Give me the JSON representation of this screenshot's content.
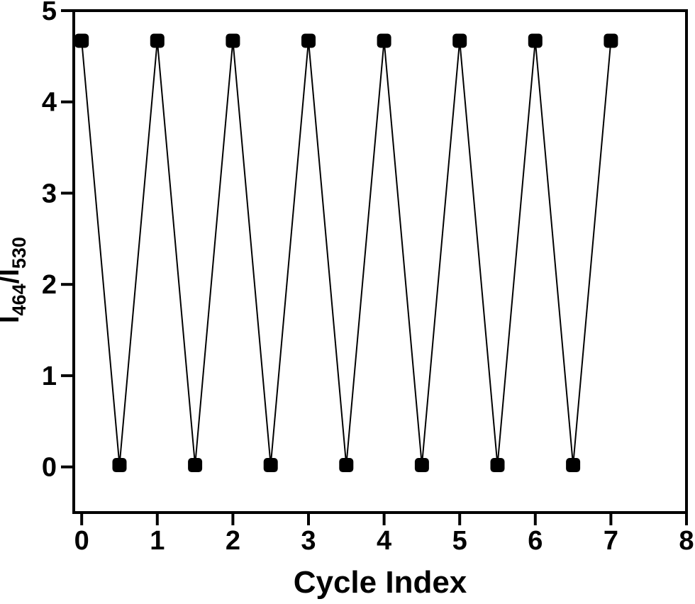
{
  "chart_data": {
    "type": "line",
    "title": "",
    "xlabel": "Cycle Index",
    "ylabel": "I464/I530",
    "ylabel_parts": {
      "symbol1": "I",
      "sub1": "464",
      "divider": "/",
      "symbol2": "I",
      "sub2": "530"
    },
    "x": [
      0,
      0.5,
      1,
      1.5,
      2,
      2.5,
      3,
      3.5,
      4,
      4.5,
      5,
      5.5,
      6,
      6.5,
      7
    ],
    "y": [
      4.67,
      0.02,
      4.67,
      0.02,
      4.67,
      0.02,
      4.67,
      0.02,
      4.67,
      0.02,
      4.67,
      0.02,
      4.67,
      0.02,
      4.67
    ],
    "xticks": [
      0,
      1,
      2,
      3,
      4,
      5,
      6,
      7,
      8
    ],
    "yticks": [
      0,
      1,
      2,
      3,
      4,
      5
    ],
    "xlim": [
      -0.105,
      8
    ],
    "ylim": [
      -0.5,
      5
    ],
    "grid": false,
    "legend": "none",
    "marker": "filled-square",
    "line_style": "solid",
    "colors": {
      "line": "#000000",
      "marker": "#000000",
      "axis": "#000000",
      "text": "#000000",
      "background": "#ffffff"
    }
  }
}
